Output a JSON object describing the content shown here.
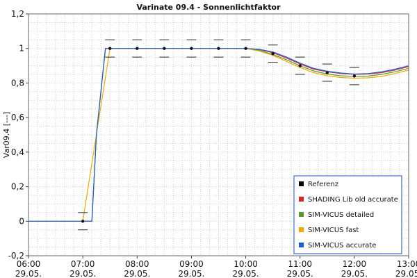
{
  "chart_data": {
    "type": "line",
    "title": "Varinate 09.4 - Sonnenlichtfaktor",
    "xlabel": "",
    "ylabel": "Var09.4 [---]",
    "ylim": [
      -0.2,
      1.2
    ],
    "xlim": [
      "06:00",
      "13:00"
    ],
    "grid": true,
    "legend_position": "bottom-right",
    "y_ticks": [
      "-0,2",
      "0",
      "0,2",
      "0,4",
      "0,6",
      "0,8",
      "1",
      "1,2"
    ],
    "x_ticks": [
      {
        "time": "06:00",
        "date": "29.05."
      },
      {
        "time": "07:00",
        "date": "29.05."
      },
      {
        "time": "08:00",
        "date": "29.05."
      },
      {
        "time": "09:00",
        "date": "29.05."
      },
      {
        "time": "10:00",
        "date": "29.05."
      },
      {
        "time": "11:00",
        "date": "29.05."
      },
      {
        "time": "12:00",
        "date": "29.05."
      },
      {
        "time": "13:00",
        "date": "29.05."
      }
    ],
    "reference": {
      "name": "Referenz",
      "color": "#000000",
      "points": [
        {
          "x": "07:00",
          "y": 0.0,
          "err": 0.05
        },
        {
          "x": "07:30",
          "y": 1.0,
          "err": 0.05
        },
        {
          "x": "08:00",
          "y": 1.0,
          "err": 0.05
        },
        {
          "x": "08:30",
          "y": 1.0,
          "err": 0.05
        },
        {
          "x": "09:00",
          "y": 1.0,
          "err": 0.05
        },
        {
          "x": "09:30",
          "y": 1.0,
          "err": 0.05
        },
        {
          "x": "10:00",
          "y": 1.0,
          "err": 0.05
        },
        {
          "x": "10:30",
          "y": 0.97,
          "err": 0.05
        },
        {
          "x": "11:00",
          "y": 0.9,
          "err": 0.05
        },
        {
          "x": "11:30",
          "y": 0.86,
          "err": 0.05
        },
        {
          "x": "12:00",
          "y": 0.84,
          "err": 0.05
        }
      ]
    },
    "series": [
      {
        "name": "SHADING Lib old accurate",
        "color": "#d62728",
        "x": [
          "06:00",
          "07:00",
          "07:10",
          "07:15",
          "07:25",
          "10:00",
          "10:15",
          "10:30",
          "10:45",
          "11:00",
          "11:15",
          "11:30",
          "11:45",
          "12:00",
          "12:15",
          "12:30",
          "12:45",
          "13:00"
        ],
        "y": [
          0.0,
          0.0,
          0.0,
          0.5,
          1.0,
          1.0,
          0.995,
          0.975,
          0.945,
          0.91,
          0.88,
          0.865,
          0.855,
          0.85,
          0.852,
          0.86,
          0.875,
          0.895
        ]
      },
      {
        "name": "SIM-VICUS detailed",
        "color": "#5a9a2a",
        "x": [
          "06:00",
          "07:00",
          "07:10",
          "07:15",
          "07:25",
          "10:00",
          "10:15",
          "10:30",
          "10:45",
          "11:00",
          "11:15",
          "11:30",
          "11:45",
          "12:00",
          "12:15",
          "12:30",
          "12:45",
          "13:00"
        ],
        "y": [
          0.0,
          0.0,
          0.0,
          0.5,
          1.0,
          1.0,
          0.99,
          0.965,
          0.935,
          0.9,
          0.87,
          0.852,
          0.842,
          0.838,
          0.84,
          0.85,
          0.865,
          0.885
        ]
      },
      {
        "name": "SIM-VICUS fast",
        "color": "#f0a800",
        "x": [
          "06:00",
          "07:00",
          "07:30",
          "10:00",
          "10:15",
          "10:30",
          "10:45",
          "11:00",
          "11:15",
          "11:30",
          "11:45",
          "12:00",
          "12:15",
          "12:30",
          "12:45",
          "13:00"
        ],
        "y": [
          0.0,
          0.0,
          1.0,
          1.0,
          0.985,
          0.96,
          0.925,
          0.89,
          0.86,
          0.842,
          0.832,
          0.828,
          0.83,
          0.838,
          0.855,
          0.875
        ]
      },
      {
        "name": "SIM-VICUS accurate",
        "color": "#1f5fd6",
        "x": [
          "06:00",
          "07:00",
          "07:10",
          "07:15",
          "07:25",
          "10:00",
          "10:15",
          "10:30",
          "10:45",
          "11:00",
          "11:15",
          "11:30",
          "11:45",
          "12:00",
          "12:15",
          "12:30",
          "12:45",
          "13:00"
        ],
        "y": [
          0.0,
          0.0,
          0.0,
          0.5,
          1.0,
          1.0,
          0.995,
          0.98,
          0.95,
          0.915,
          0.885,
          0.868,
          0.858,
          0.852,
          0.855,
          0.865,
          0.88,
          0.9
        ]
      }
    ]
  }
}
